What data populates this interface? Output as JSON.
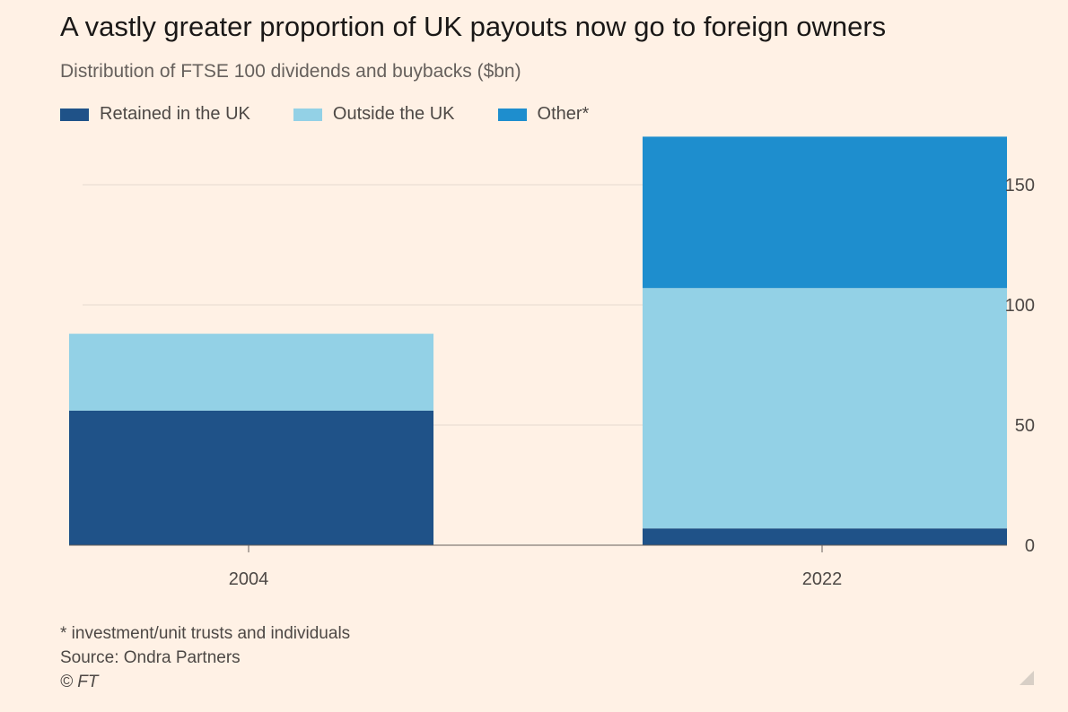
{
  "title": "A vastly greater proportion of UK payouts now go to foreign owners",
  "subtitle": "Distribution of FTSE 100 dividends and buybacks ($bn)",
  "footnote": "* investment/unit trusts and individuals",
  "source": "Source: Ondra Partners",
  "copyright": "© FT",
  "chart_data": {
    "type": "bar",
    "stacked": true,
    "categories": [
      "2004",
      "2022"
    ],
    "series": [
      {
        "name": "Retained in the UK",
        "color": "#1f5288",
        "values": [
          56,
          7
        ]
      },
      {
        "name": "Outside the UK",
        "color": "#93d1e6",
        "values": [
          32,
          100
        ]
      },
      {
        "name": "Other*",
        "color": "#1e8ece",
        "values": [
          0,
          63
        ]
      }
    ],
    "y_ticks": [
      "0",
      "50",
      "100",
      "150"
    ],
    "ylim": [
      0,
      170
    ],
    "y_axis_side": "right",
    "grid": true,
    "legend_position": "top-left"
  }
}
